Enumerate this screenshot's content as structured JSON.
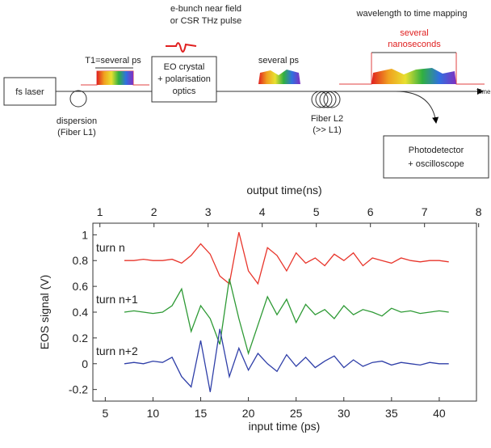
{
  "diagram": {
    "source": "fs laser",
    "dispersion": [
      "dispersion",
      "(Fiber L1)"
    ],
    "stretch": "T1=several ps",
    "thz": [
      "e-bunch near field",
      "or CSR THz pulse"
    ],
    "crystal": [
      "EO crystal",
      "+ polarisation",
      "optics"
    ],
    "modulated": "several ps",
    "fiber2": [
      "Fiber L2",
      "(>> L1)"
    ],
    "mapping": "wavelength to time mapping",
    "duration": [
      "several",
      "nanoseconds"
    ],
    "axis": "Time",
    "detector": [
      "Photodetector",
      "+ oscilloscope"
    ]
  },
  "chart_data": {
    "type": "line",
    "xlabel": "input time (ps)",
    "x2label": "output time(ns)",
    "ylabel": "EOS signal (V)",
    "x": [
      7,
      8,
      9,
      10,
      11,
      12,
      13,
      14,
      15,
      16,
      17,
      18,
      19,
      20,
      21,
      22,
      23,
      24,
      25,
      26,
      27,
      28,
      29,
      30,
      31,
      32,
      33,
      34,
      35,
      36,
      37,
      38,
      39,
      40,
      41
    ],
    "series": [
      {
        "name": "turn n",
        "color": "#e8352b",
        "values": [
          0.8,
          0.8,
          0.81,
          0.8,
          0.8,
          0.81,
          0.78,
          0.84,
          0.93,
          0.85,
          0.68,
          0.62,
          1.02,
          0.72,
          0.62,
          0.9,
          0.84,
          0.72,
          0.86,
          0.78,
          0.82,
          0.76,
          0.85,
          0.8,
          0.86,
          0.76,
          0.82,
          0.8,
          0.78,
          0.82,
          0.8,
          0.79,
          0.8,
          0.8,
          0.79
        ]
      },
      {
        "name": "turn n+1",
        "color": "#2e9a35",
        "values": [
          0.4,
          0.41,
          0.4,
          0.39,
          0.4,
          0.45,
          0.58,
          0.25,
          0.45,
          0.35,
          0.15,
          0.66,
          0.35,
          0.08,
          0.3,
          0.52,
          0.38,
          0.5,
          0.32,
          0.46,
          0.38,
          0.42,
          0.35,
          0.45,
          0.38,
          0.42,
          0.4,
          0.37,
          0.43,
          0.4,
          0.41,
          0.39,
          0.4,
          0.41,
          0.4
        ]
      },
      {
        "name": "turn n+2",
        "color": "#2f3fa8",
        "values": [
          0,
          0.01,
          0,
          0.02,
          0.01,
          0.05,
          -0.1,
          -0.18,
          0.18,
          -0.22,
          0.27,
          -0.1,
          0.12,
          -0.05,
          0.08,
          0,
          -0.06,
          0.07,
          -0.02,
          0.05,
          -0.03,
          0.02,
          0.06,
          -0.03,
          0.03,
          -0.02,
          0.01,
          0.02,
          -0.01,
          0.01,
          0,
          -0.01,
          0.01,
          0,
          0
        ]
      }
    ],
    "xlim": [
      3.7,
      43.9
    ],
    "xticks": [
      5,
      10,
      15,
      20,
      25,
      30,
      35,
      40
    ],
    "x2lim": [
      0.87,
      7.96
    ],
    "x2ticks": [
      1,
      2,
      3,
      4,
      5,
      6,
      7,
      8
    ],
    "ylim": [
      -0.29,
      1.09
    ],
    "yticks": [
      -0.2,
      0,
      0.2,
      0.4,
      0.6,
      0.8,
      1
    ]
  }
}
